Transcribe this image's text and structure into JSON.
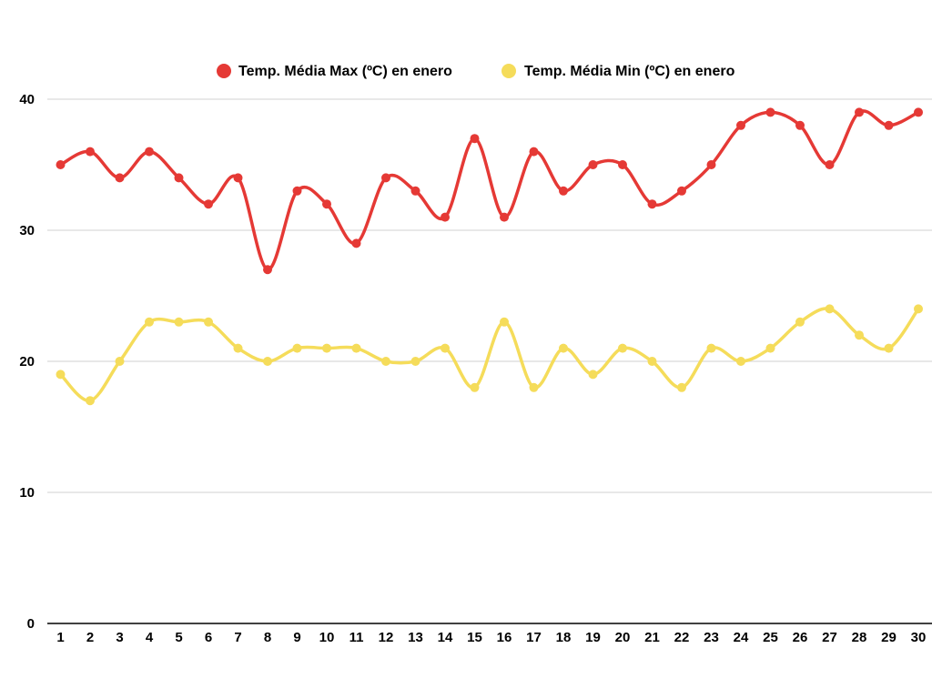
{
  "chart_data": {
    "type": "line",
    "title": "",
    "xlabel": "",
    "ylabel": "",
    "categories": [
      "1",
      "2",
      "3",
      "4",
      "5",
      "6",
      "7",
      "8",
      "9",
      "10",
      "11",
      "12",
      "13",
      "14",
      "15",
      "16",
      "17",
      "18",
      "19",
      "20",
      "21",
      "22",
      "23",
      "24",
      "25",
      "26",
      "27",
      "28",
      "29",
      "30"
    ],
    "ylim": [
      0,
      40
    ],
    "yticks": [
      "0",
      "10",
      "20",
      "30",
      "40"
    ],
    "grid": true,
    "legend_position": "top",
    "series": [
      {
        "name": "Temp. Média Max (ºC) en enero",
        "color": "#e53935",
        "values": [
          35,
          36,
          34,
          36,
          34,
          32,
          34,
          27,
          33,
          32,
          29,
          34,
          33,
          31,
          37,
          31,
          36,
          33,
          35,
          35,
          32,
          33,
          35,
          38,
          39,
          38,
          35,
          39,
          38,
          39
        ]
      },
      {
        "name": "Temp. Média Min (ºC) en enero",
        "color": "#f5dc5a",
        "values": [
          19,
          17,
          20,
          23,
          23,
          23,
          21,
          20,
          21,
          21,
          21,
          20,
          20,
          21,
          18,
          23,
          18,
          21,
          19,
          21,
          20,
          18,
          21,
          20,
          21,
          23,
          24,
          22,
          21,
          24
        ]
      }
    ]
  }
}
